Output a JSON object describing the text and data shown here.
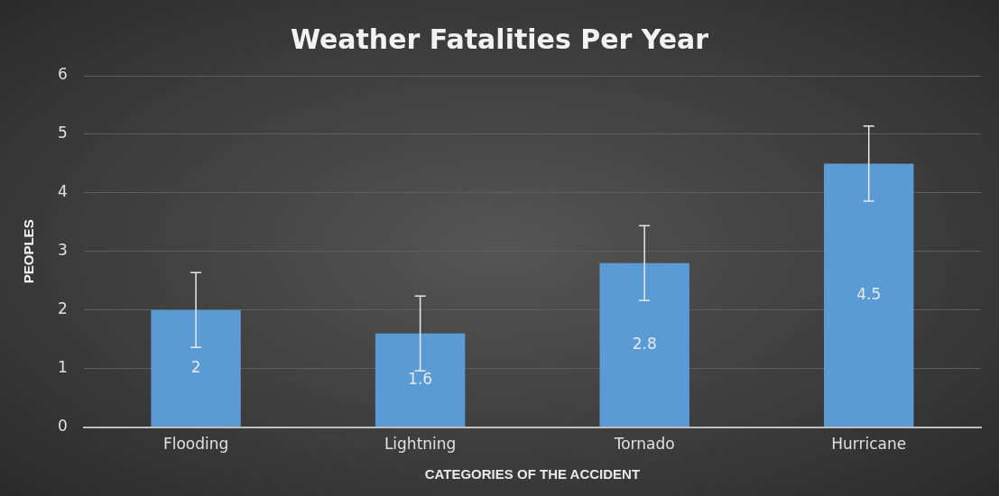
{
  "chart_data": {
    "type": "bar",
    "title": "Weather Fatalities Per Year",
    "xlabel": "CATEGORIES OF THE ACCIDENT",
    "ylabel": "PEOPLES",
    "categories": [
      "Flooding",
      "Lightning",
      "Tornado",
      "Hurricane"
    ],
    "values": [
      2,
      1.6,
      2.8,
      4.5
    ],
    "errors": [
      0.64,
      0.64,
      0.64,
      0.64
    ],
    "color": "#5b9bd5",
    "ylim": [
      0,
      6
    ],
    "yticks": [
      0,
      1,
      2,
      3,
      4,
      5,
      6
    ],
    "grid": "y",
    "data_labels": true,
    "legend": false
  }
}
